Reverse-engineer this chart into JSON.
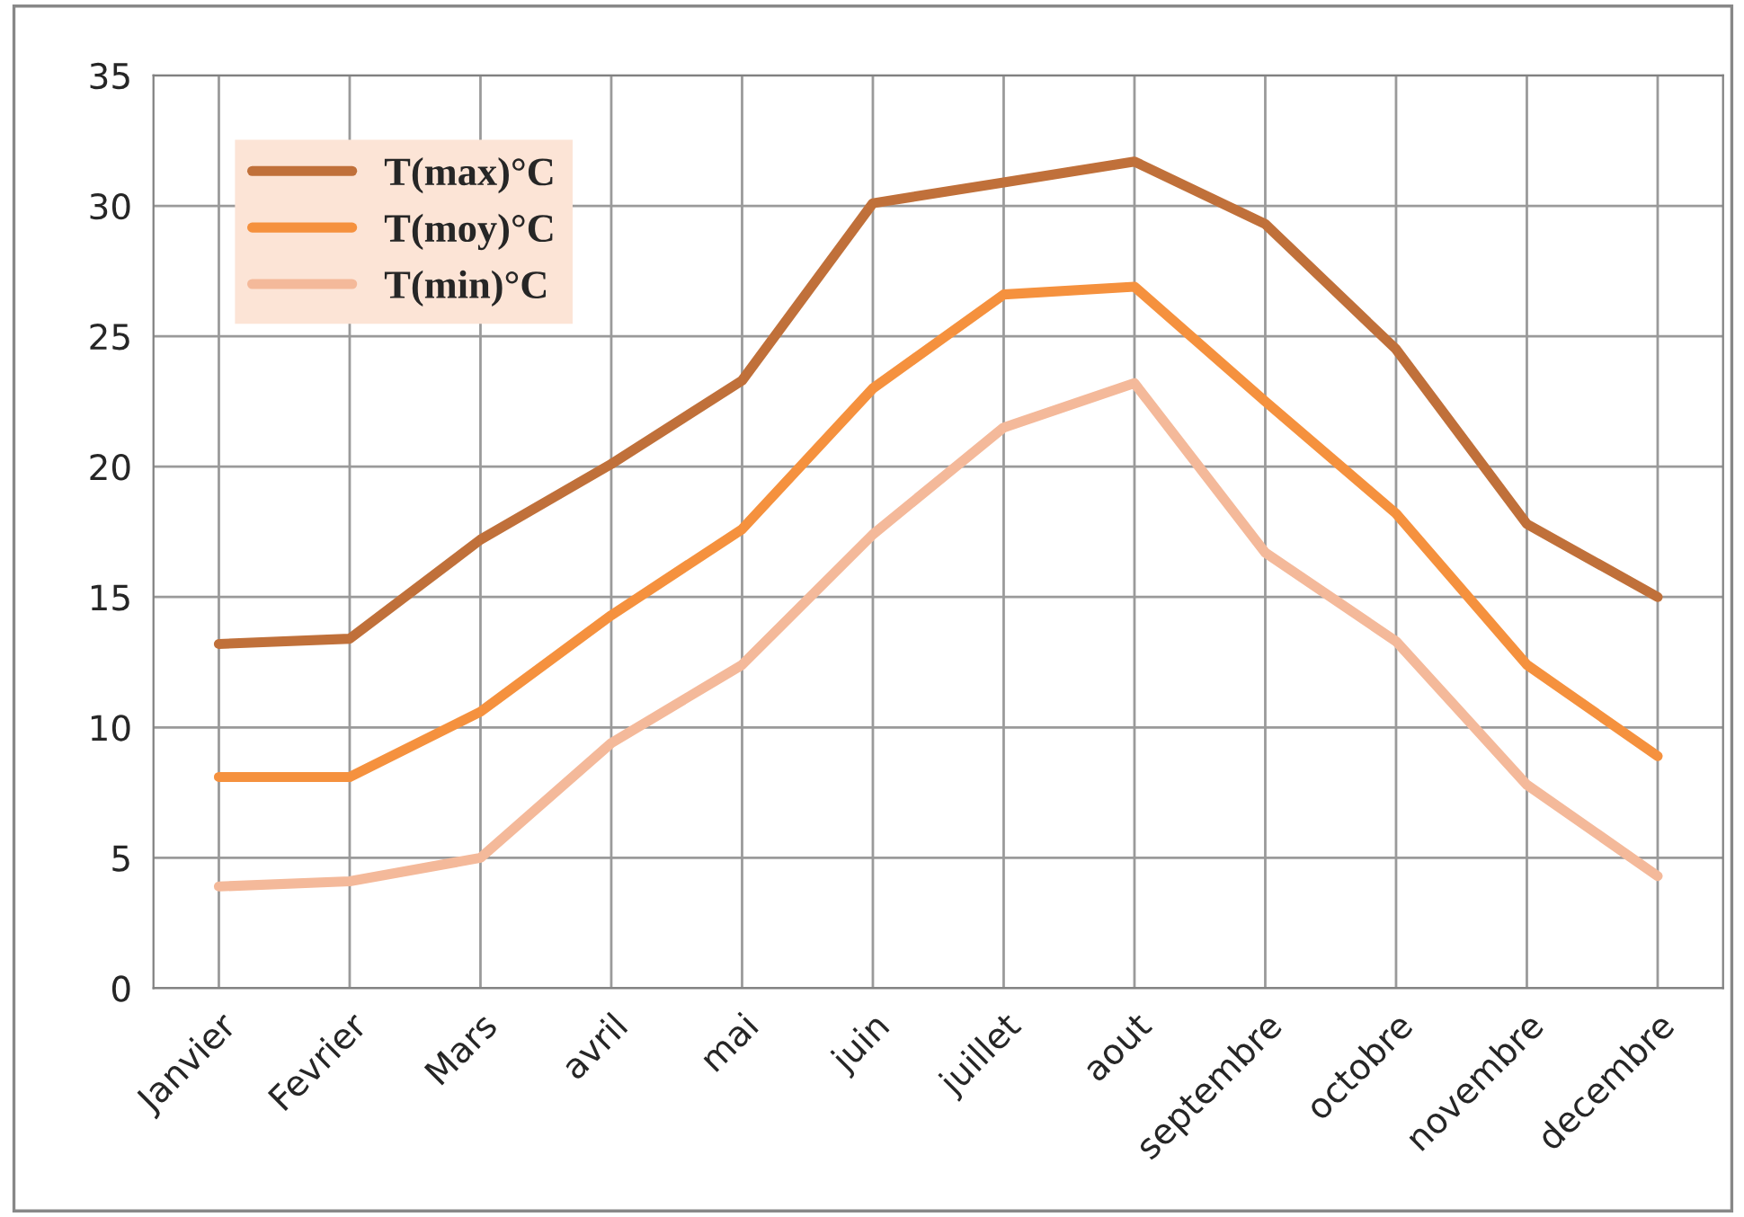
{
  "chart_data": {
    "type": "line",
    "categories": [
      "Janvier",
      "Fevrier",
      "Mars",
      "avril",
      "mai",
      "juin",
      "juillet",
      "aout",
      "septembre",
      "octobre",
      "novembre",
      "decembre"
    ],
    "series": [
      {
        "name": "T(max)°C",
        "color": "#c0703a",
        "values": [
          13.2,
          13.4,
          17.2,
          20.1,
          23.3,
          30.1,
          30.9,
          31.7,
          29.3,
          24.5,
          17.8,
          15.0
        ]
      },
      {
        "name": "T(moy)°C",
        "color": "#f5913e",
        "values": [
          8.1,
          8.1,
          10.6,
          14.3,
          17.6,
          23.0,
          26.6,
          26.9,
          22.5,
          18.2,
          12.4,
          8.9
        ]
      },
      {
        "name": "T(min)°C",
        "color": "#f4b99a",
        "values": [
          3.9,
          4.1,
          5.0,
          9.4,
          12.4,
          17.4,
          21.5,
          23.2,
          16.7,
          13.3,
          7.8,
          4.3
        ]
      }
    ],
    "ylim": [
      0,
      35
    ],
    "yticks": [
      0,
      5,
      10,
      15,
      20,
      25,
      30,
      35
    ],
    "grid": true,
    "legend": "top left",
    "marker": "none",
    "line_style": "solid"
  }
}
